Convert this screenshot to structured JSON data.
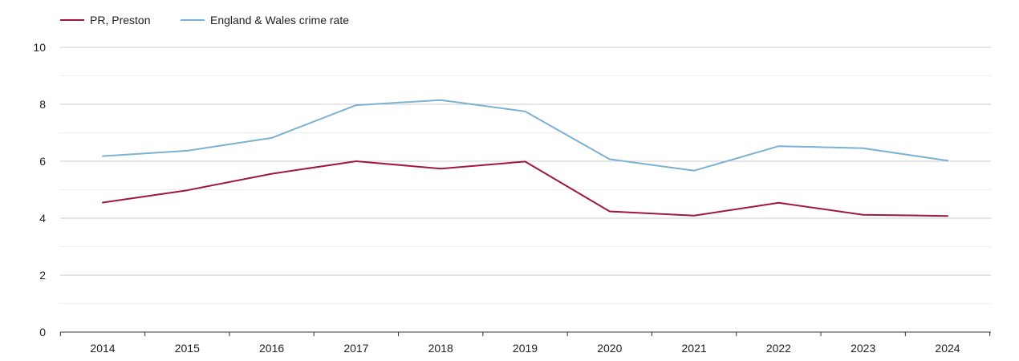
{
  "chart_data": {
    "type": "line",
    "title": "",
    "xlabel": "",
    "ylabel": "",
    "ylim": [
      0,
      10
    ],
    "yticks": [
      0,
      2,
      4,
      6,
      8,
      10
    ],
    "grid": true,
    "legend_position": "top-left",
    "categories": [
      "2014",
      "2015",
      "2016",
      "2017",
      "2018",
      "2019",
      "2020",
      "2021",
      "2022",
      "2023",
      "2024"
    ],
    "series": [
      {
        "name": "PR, Preston",
        "color": "#a0183a",
        "values": [
          4.55,
          4.98,
          5.56,
          6.0,
          5.74,
          5.99,
          4.24,
          4.09,
          4.54,
          4.12,
          4.08
        ]
      },
      {
        "name": "England & Wales crime rate",
        "color": "#7bb1d2",
        "values": [
          6.18,
          6.37,
          6.82,
          7.97,
          8.15,
          7.75,
          6.07,
          5.67,
          6.53,
          6.46,
          6.02
        ]
      }
    ]
  }
}
